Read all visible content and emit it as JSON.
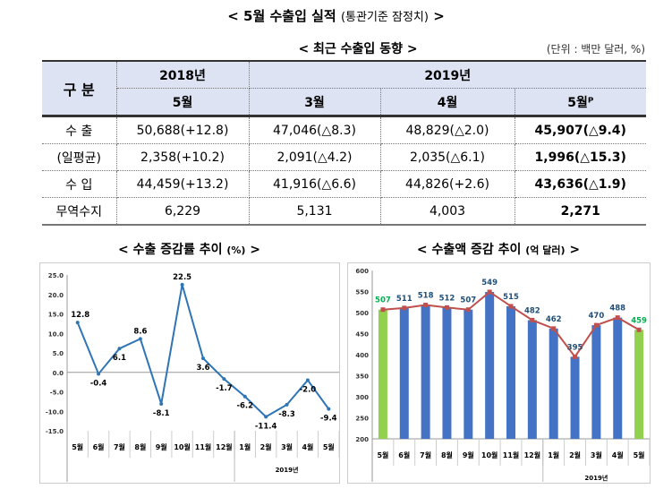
{
  "title": {
    "main": "< 5월 수출입 실적",
    "sub": "(통관기준 잠정치)",
    "close": ">"
  },
  "table": {
    "title": "< 최근 수출입 동향 >",
    "unit": "(단위 : 백만 달러, %)",
    "header": {
      "category": "구 분",
      "y2018": "2018년",
      "y2019": "2019년",
      "m2018_5": "5월",
      "m3": "3월",
      "m4": "4월",
      "m5": "5월ᴾ"
    },
    "rows": [
      {
        "label": "수 출",
        "v": [
          "50,688(+12.8)",
          "47,046(△8.3)",
          "48,829(△2.0)",
          "45,907(△9.4)"
        ]
      },
      {
        "label": "(일평균)",
        "v": [
          "2,358(+10.2)",
          "2,091(△4.2)",
          "2,035(△6.1)",
          "1,996(△15.3)"
        ]
      },
      {
        "label": "수 입",
        "v": [
          "44,459(+13.2)",
          "41,916(△6.6)",
          "44,826(+2.6)",
          "43,636(△1.9)"
        ]
      },
      {
        "label": "무역수지",
        "v": [
          "6,229",
          "5,131",
          "4,003",
          "2,271"
        ]
      }
    ]
  },
  "chart_data": [
    {
      "type": "line",
      "title": "< 수출 증감률 추이",
      "title_unit": "(%)",
      "title_close": ">",
      "categories": [
        "5월",
        "6월",
        "7월",
        "8월",
        "9월",
        "10월",
        "11월",
        "12월",
        "1월",
        "2월",
        "3월",
        "4월",
        "5월"
      ],
      "group_label": "2019년",
      "values": [
        12.8,
        -0.4,
        6.1,
        8.6,
        -8.1,
        22.5,
        3.6,
        -1.7,
        -6.2,
        -11.4,
        -8.3,
        -2.0,
        -9.4
      ],
      "ylim": [
        -15,
        25
      ],
      "yticks": [
        "25.0",
        "20.0",
        "15.0",
        "10.0",
        "5.0",
        "0.0",
        "-5.0",
        "-10.0",
        "-15.0"
      ],
      "color": "#2e75b6"
    },
    {
      "type": "bar",
      "title": "< 수출액 증감 추이",
      "title_unit": "(억 달러)",
      "title_close": ">",
      "categories": [
        "5월",
        "6월",
        "7월",
        "8월",
        "9월",
        "10월",
        "11월",
        "12월",
        "1월",
        "2월",
        "3월",
        "4월",
        "5월"
      ],
      "group_label": "2019년",
      "values": [
        507,
        511,
        518,
        512,
        507,
        549,
        515,
        482,
        462,
        395,
        470,
        488,
        459
      ],
      "ylim": [
        200,
        600
      ],
      "yticks": [
        "600",
        "550",
        "500",
        "450",
        "400",
        "350",
        "300",
        "250",
        "200"
      ],
      "bar_color": "#4472c4",
      "highlight_color": "#92d050",
      "line_color": "#c0504d",
      "label_color": "#1f4e79",
      "highlight_label_color": "#00b050"
    }
  ]
}
